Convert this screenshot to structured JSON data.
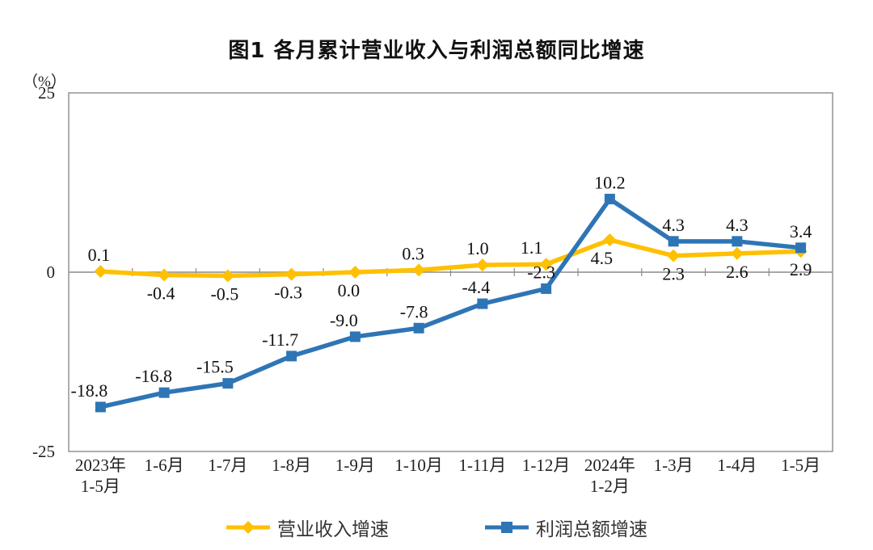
{
  "title": "图1  各月累计营业收入与利润总额同比增速",
  "y_axis": {
    "unit_label": "（%）",
    "ticks": [
      "25",
      "0",
      "-25"
    ]
  },
  "chart_data": {
    "type": "line",
    "title": "图1  各月累计营业收入与利润总额同比增速",
    "ylabel": "（%）",
    "ylim": [
      -25,
      25
    ],
    "y_ticks": [
      25,
      0,
      -25
    ],
    "grid": false,
    "legend_position": "bottom",
    "categories": [
      "2023年\n1-5月",
      "1-6月",
      "1-7月",
      "1-8月",
      "1-9月",
      "1-10月",
      "1-11月",
      "1-12月",
      "2024年\n1-2月",
      "1-3月",
      "1-4月",
      "1-5月"
    ],
    "series": [
      {
        "name": "营业收入增速",
        "color": "#FFC000",
        "marker": "diamond",
        "values": [
          0.1,
          -0.4,
          -0.5,
          -0.3,
          0.0,
          0.3,
          1.0,
          1.1,
          4.5,
          2.3,
          2.6,
          2.9
        ],
        "label_side": [
          "above",
          "below",
          "below",
          "below",
          "below",
          "above",
          "above",
          "above",
          "below",
          "below",
          "below",
          "below"
        ],
        "label_dx": [
          -2,
          -4,
          -4,
          -4,
          -8,
          -7,
          -6,
          -18,
          -10,
          0,
          0,
          0
        ]
      },
      {
        "name": "利润总额增速",
        "color": "#2E75B6",
        "marker": "square",
        "values": [
          -18.8,
          -16.8,
          -15.5,
          -11.7,
          -9.0,
          -7.8,
          -4.4,
          -2.3,
          10.2,
          4.3,
          4.3,
          3.4
        ],
        "label_side": [
          "above",
          "above",
          "above",
          "above",
          "above",
          "above",
          "above",
          "above",
          "above",
          "above",
          "above",
          "above"
        ],
        "label_dx": [
          -14,
          -13,
          -16,
          -14,
          -14,
          -6,
          -8,
          -6,
          0,
          0,
          0,
          0
        ]
      }
    ]
  },
  "legend": {
    "items": [
      {
        "label": "营业收入增速"
      },
      {
        "label": "利润总额增速"
      }
    ]
  }
}
